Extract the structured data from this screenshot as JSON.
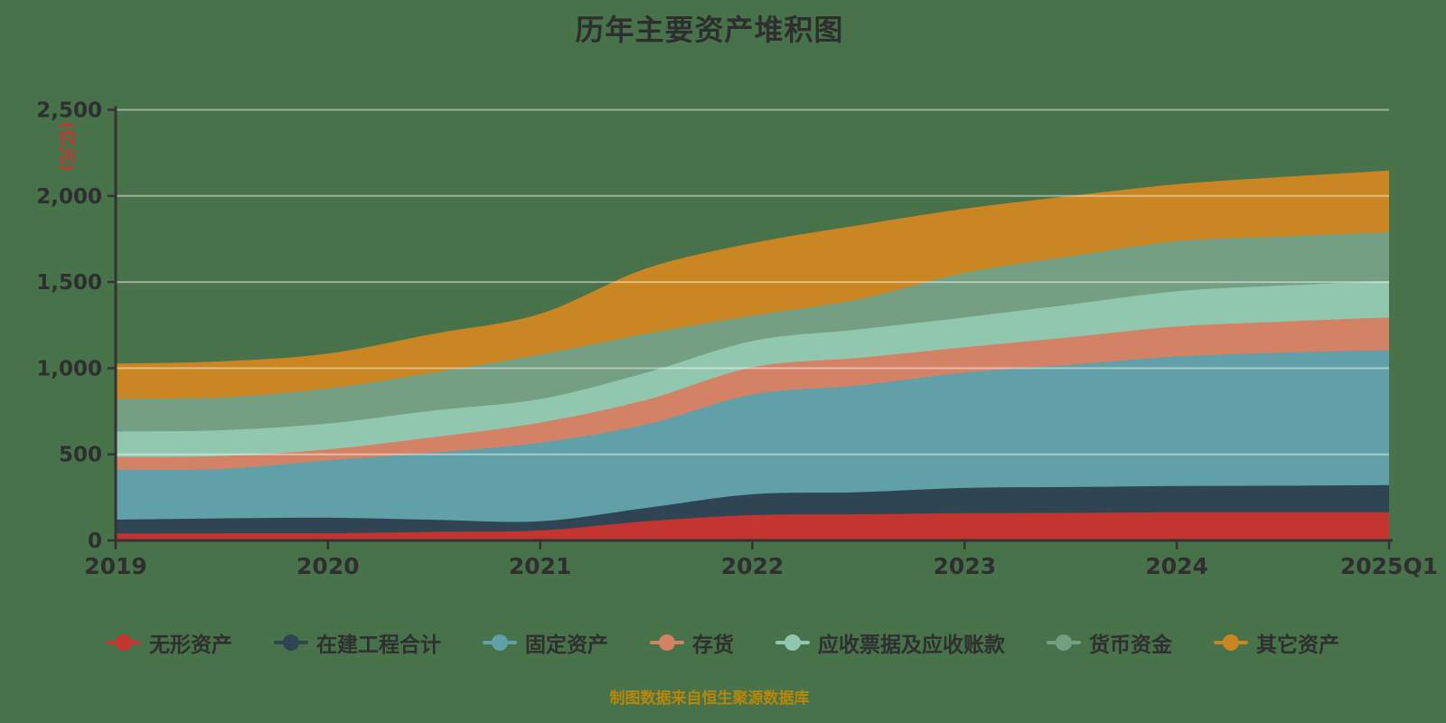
{
  "title": "历年主要资产堆积图",
  "caption": "制图数据来自恒生聚源数据库",
  "colors": {
    "background": "#47724a",
    "title_text": "#2e2e2e",
    "axis_label": "#2f2f2f",
    "axis_line": "#333333",
    "gridline": "rgba(255,255,255,0.45)",
    "caption_text": "#b8860b",
    "unit_label": "#c23531"
  },
  "axis": {
    "unit_label": "(亿元)",
    "x_labels": [
      "2019",
      "2020",
      "2021",
      "2022",
      "2023",
      "2024",
      "2025Q1"
    ],
    "y_tick_labels": [
      "0",
      "500",
      "1,000",
      "1,500",
      "2,000",
      "2,500"
    ]
  },
  "legend": {
    "items": [
      {
        "label": "无形资产",
        "color": "#c23531"
      },
      {
        "label": "在建工程合计",
        "color": "#2f4554"
      },
      {
        "label": "固定资产",
        "color": "#61a0a8"
      },
      {
        "label": "存货",
        "color": "#d48265"
      },
      {
        "label": "应收票据及应收账款",
        "color": "#91c7ae"
      },
      {
        "label": "货币资金",
        "color": "#749f83"
      },
      {
        "label": "其它资产",
        "color": "#ca8622"
      }
    ]
  },
  "chart_data": {
    "type": "area",
    "stacked": true,
    "smooth": true,
    "title": "历年主要资产堆积图",
    "ylabel": "(亿元)",
    "categories": [
      "2019",
      "2020",
      "2021",
      "2022",
      "2023",
      "2024",
      "2025Q1"
    ],
    "y_tick_values": [
      0,
      500,
      1000,
      1500,
      2000,
      2500
    ],
    "y_tick_labels": [
      "0",
      "500",
      "1,000",
      "1,500",
      "2,000",
      "2,500"
    ],
    "ylim": [
      0,
      2500
    ],
    "grid": true,
    "legend_position": "bottom",
    "sample_x": [
      0,
      0.5,
      1,
      1.5,
      2,
      2.5,
      3,
      3.5,
      4,
      4.5,
      5,
      5.5,
      6
    ],
    "sample_x_note": "axis positions of curve samples; integer positions correspond to categories",
    "series": [
      {
        "name": "无形资产",
        "color": "#c23531",
        "values": [
          40,
          41,
          42,
          50,
          58,
          111,
          147,
          152,
          158,
          160,
          163,
          163,
          163
        ]
      },
      {
        "name": "在建工程合计",
        "color": "#2f4554",
        "values": [
          81,
          87,
          90,
          70,
          53,
          78,
          121,
          128,
          147,
          150,
          153,
          155,
          158
        ]
      },
      {
        "name": "固定资产",
        "color": "#61a0a8",
        "values": [
          290,
          287,
          333,
          390,
          457,
          485,
          579,
          620,
          669,
          710,
          752,
          772,
          784
        ]
      },
      {
        "name": "存货",
        "color": "#d48265",
        "values": [
          73,
          75,
          64,
          90,
          116,
          142,
          158,
          160,
          147,
          160,
          174,
          180,
          190
        ]
      },
      {
        "name": "应收票据及应收账款",
        "color": "#91c7ae",
        "values": [
          148,
          150,
          150,
          155,
          137,
          158,
          153,
          165,
          174,
          190,
          205,
          210,
          210
        ]
      },
      {
        "name": "货币资金",
        "color": "#749f83",
        "values": [
          189,
          190,
          203,
          220,
          258,
          226,
          147,
          175,
          258,
          280,
          290,
          285,
          284
        ]
      },
      {
        "name": "其它资产",
        "color": "#ca8622",
        "values": [
          205,
          210,
          203,
          225,
          237,
          379,
          421,
          430,
          373,
          350,
          331,
          345,
          358
        ]
      }
    ],
    "totals_by_category": [
      1026,
      1085,
      1316,
      1726,
      1926,
      2068,
      2147
    ]
  }
}
